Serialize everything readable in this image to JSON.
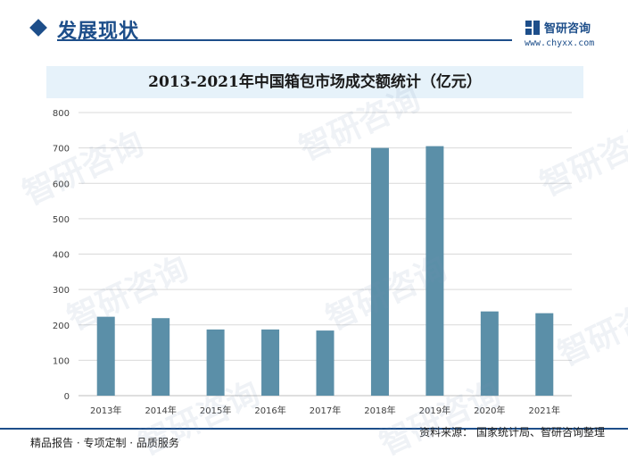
{
  "header": {
    "section_title": "发展现状",
    "brand_name": "智研咨询",
    "brand_url": "www.chyxx.com"
  },
  "watermark": "智研咨询",
  "colors": {
    "bar": "#5b8fa8",
    "accent": "#1d4e8a",
    "title_bg": "#e6f2fa",
    "grid": "#d9d9d9"
  },
  "chart_data": {
    "type": "bar",
    "title": "2013-2021年中国箱包市场成交额统计（亿元）",
    "categories": [
      "2013年",
      "2014年",
      "2015年",
      "2016年",
      "2017年",
      "2018年",
      "2019年",
      "2020年",
      "2021年"
    ],
    "values": [
      223,
      219,
      187,
      187,
      184,
      700,
      705,
      238,
      233
    ],
    "ylim": [
      0,
      800
    ],
    "yticks": [
      0,
      100,
      200,
      300,
      400,
      500,
      600,
      700,
      800
    ],
    "xlabel": "",
    "ylabel": "",
    "grid": true
  },
  "footer": {
    "slogan": "精品报告 · 专项定制 · 品质服务",
    "source": "资料来源：  国家统计局、智研咨询整理"
  }
}
